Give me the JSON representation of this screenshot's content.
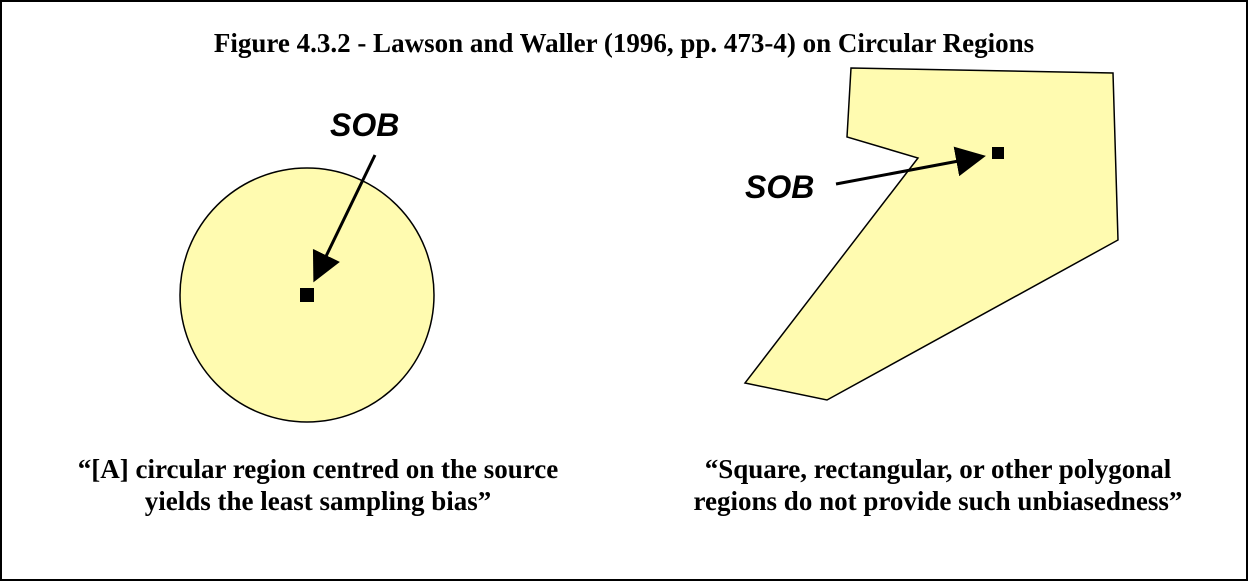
{
  "title": "Figure 4.3.2 - Lawson and Waller (1996, pp. 473-4) on Circular Regions",
  "left": {
    "label": "SOB",
    "caption": [
      "“[A] circular region centred on the source",
      "yields the least sampling bias”"
    ]
  },
  "right": {
    "label": "SOB",
    "caption": [
      "“Square, rectangular, or other polygonal",
      "regions do not provide such unbiasedness”"
    ]
  }
}
